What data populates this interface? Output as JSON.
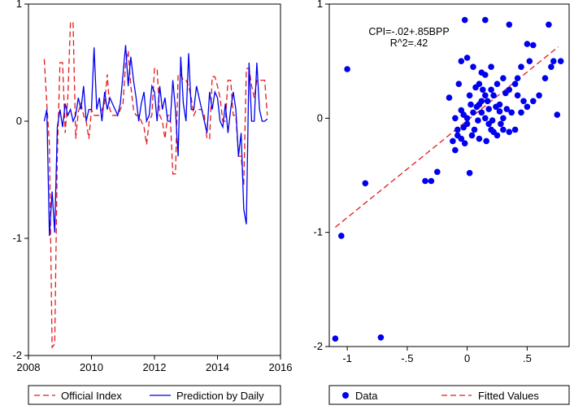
{
  "chart_data": [
    {
      "type": "line",
      "title": "",
      "xlabel": "",
      "ylabel": "",
      "xlim": [
        2008,
        2016
      ],
      "ylim": [
        -2,
        1
      ],
      "xticks": [
        "2008",
        "2010",
        "2012",
        "2014",
        "2016"
      ],
      "yticks": [
        "1",
        "0",
        "-1",
        "-2"
      ],
      "legend": {
        "placement": "bottom",
        "entries": [
          "Official Index",
          "Prediction by Daily"
        ]
      },
      "series": [
        {
          "name": "Official Index",
          "color": "#e41a1c",
          "style": "dashed",
          "x": [
            2008.5,
            2008.583,
            2008.667,
            2008.75,
            2008.833,
            2008.917,
            2009.0,
            2009.083,
            2009.167,
            2009.25,
            2009.333,
            2009.417,
            2009.5,
            2009.583,
            2009.667,
            2009.75,
            2009.833,
            2009.917,
            2010.0,
            2010.083,
            2010.167,
            2010.25,
            2010.333,
            2010.417,
            2010.5,
            2010.583,
            2010.667,
            2010.75,
            2010.833,
            2010.917,
            2011.0,
            2011.083,
            2011.167,
            2011.25,
            2011.333,
            2011.417,
            2011.5,
            2011.583,
            2011.667,
            2011.75,
            2011.833,
            2011.917,
            2012.0,
            2012.083,
            2012.167,
            2012.25,
            2012.333,
            2012.417,
            2012.5,
            2012.583,
            2012.667,
            2012.75,
            2012.833,
            2012.917,
            2013.0,
            2013.083,
            2013.167,
            2013.25,
            2013.333,
            2013.417,
            2013.5,
            2013.583,
            2013.667,
            2013.75,
            2013.833,
            2013.917,
            2014.0,
            2014.083,
            2014.167,
            2014.25,
            2014.333,
            2014.417,
            2014.5,
            2014.583,
            2014.667,
            2014.75,
            2014.833,
            2014.917,
            2015.0,
            2015.083,
            2015.167,
            2015.25,
            2015.333,
            2015.417,
            2015.5,
            2015.583
          ],
          "values": [
            0.53,
            0.15,
            -0.2,
            -1.93,
            -1.9,
            -0.3,
            0.5,
            0.5,
            -0.1,
            0.2,
            0.85,
            0.84,
            -0.15,
            0.08,
            0.15,
            0.05,
            0.0,
            -0.15,
            0.1,
            0.05,
            0.05,
            0.05,
            0.1,
            0.15,
            0.4,
            0.1,
            0.05,
            0.05,
            0.05,
            0.1,
            0.15,
            0.5,
            0.6,
            0.3,
            0.1,
            0.05,
            0.05,
            0.0,
            -0.05,
            -0.2,
            0.0,
            0.05,
            0.45,
            0.45,
            0.05,
            0.0,
            -0.15,
            0.05,
            0.05,
            -0.45,
            -0.45,
            0.4,
            0.4,
            0.35,
            0.35,
            0.3,
            0.2,
            0.05,
            0.1,
            0.1,
            0.1,
            0.05,
            -0.15,
            -0.15,
            0.38,
            0.38,
            0.3,
            0.2,
            0.0,
            0.0,
            0.35,
            0.35,
            0.05,
            0.05,
            -0.3,
            -0.3,
            -0.55,
            0.45,
            0.45,
            0.3,
            0.2,
            0.35,
            0.35,
            0.35,
            0.35,
            0.05
          ]
        },
        {
          "name": "Prediction by Daily",
          "color": "#0000ee",
          "style": "solid",
          "x": [
            2008.5,
            2008.583,
            2008.667,
            2008.75,
            2008.833,
            2008.917,
            2009.0,
            2009.083,
            2009.167,
            2009.25,
            2009.333,
            2009.417,
            2009.5,
            2009.583,
            2009.667,
            2009.75,
            2009.833,
            2009.917,
            2010.0,
            2010.083,
            2010.167,
            2010.25,
            2010.333,
            2010.417,
            2010.5,
            2010.583,
            2010.667,
            2010.75,
            2010.833,
            2010.917,
            2011.0,
            2011.083,
            2011.167,
            2011.25,
            2011.333,
            2011.417,
            2011.5,
            2011.583,
            2011.667,
            2011.75,
            2011.833,
            2011.917,
            2012.0,
            2012.083,
            2012.167,
            2012.25,
            2012.333,
            2012.417,
            2012.5,
            2012.583,
            2012.667,
            2012.75,
            2012.833,
            2012.917,
            2013.0,
            2013.083,
            2013.167,
            2013.25,
            2013.333,
            2013.417,
            2013.5,
            2013.583,
            2013.667,
            2013.75,
            2013.833,
            2013.917,
            2014.0,
            2014.083,
            2014.167,
            2014.25,
            2014.333,
            2014.417,
            2014.5,
            2014.583,
            2014.667,
            2014.75,
            2014.833,
            2014.917,
            2015.0,
            2015.083,
            2015.167,
            2015.25,
            2015.333,
            2015.417,
            2015.5,
            2015.583
          ],
          "values": [
            0.0,
            0.1,
            -0.98,
            -0.6,
            -0.95,
            -0.05,
            0.1,
            -0.05,
            0.15,
            0.05,
            0.1,
            0.0,
            0.05,
            0.2,
            0.1,
            0.3,
            0.0,
            0.1,
            0.1,
            0.63,
            0.1,
            0.2,
            0.0,
            0.25,
            0.1,
            0.2,
            0.15,
            0.1,
            0.05,
            0.15,
            0.4,
            0.65,
            0.3,
            0.55,
            0.35,
            0.2,
            0.0,
            0.15,
            0.25,
            0.0,
            0.05,
            0.3,
            0.25,
            0.0,
            0.3,
            0.1,
            0.2,
            0.0,
            0.0,
            0.35,
            0.1,
            -0.3,
            0.55,
            0.15,
            0.0,
            0.58,
            0.1,
            0.1,
            0.3,
            0.2,
            0.1,
            0.0,
            -0.1,
            0.25,
            0.1,
            0.25,
            0.2,
            0.0,
            -0.05,
            0.15,
            -0.1,
            0.1,
            0.25,
            0.1,
            -0.3,
            -0.1,
            -0.75,
            -0.88,
            0.5,
            0.0,
            0.0,
            0.5,
            0.1,
            0.0,
            0.0,
            0.02
          ]
        }
      ]
    },
    {
      "type": "scatter",
      "title": "",
      "xlabel": "",
      "ylabel": "",
      "xlim": [
        -1.15,
        0.85
      ],
      "ylim": [
        -2,
        1
      ],
      "xticks": [
        "-1",
        "-.5",
        "0",
        ".5"
      ],
      "yticks": [
        "1",
        "0",
        "-1",
        "-2"
      ],
      "annotations": [
        "CPI=-.02+.85BPP",
        "R^2=.42"
      ],
      "legend": {
        "placement": "bottom",
        "entries": [
          "Data",
          "Fitted Values"
        ]
      },
      "fit_line": {
        "name": "Fitted Values",
        "color": "#e41a1c",
        "style": "dashed",
        "intercept": -0.02,
        "slope": 0.85,
        "x_range": [
          -1.1,
          0.76
        ]
      },
      "series": [
        {
          "name": "Data",
          "color": "#0000ee",
          "points": [
            [
              -1.1,
              -1.93
            ],
            [
              -0.72,
              -1.92
            ],
            [
              -1.05,
              -1.03
            ],
            [
              -0.85,
              -0.57
            ],
            [
              -1.0,
              0.43
            ],
            [
              -0.35,
              -0.55
            ],
            [
              -0.3,
              -0.55
            ],
            [
              -0.25,
              -0.47
            ],
            [
              -0.1,
              -0.28
            ],
            [
              -0.08,
              -0.15
            ],
            [
              -0.05,
              -0.18
            ],
            [
              -0.03,
              -0.08
            ],
            [
              0.02,
              -0.48
            ],
            [
              0.0,
              0.0
            ],
            [
              0.05,
              0.05
            ],
            [
              0.08,
              0.1
            ],
            [
              0.1,
              0.12
            ],
            [
              0.12,
              0.15
            ],
            [
              0.15,
              0.2
            ],
            [
              0.2,
              0.25
            ],
            [
              0.18,
              -0.05
            ],
            [
              0.22,
              -0.12
            ],
            [
              0.25,
              -0.15
            ],
            [
              0.3,
              -0.1
            ],
            [
              0.35,
              -0.12
            ],
            [
              0.4,
              -0.1
            ],
            [
              0.45,
              0.05
            ],
            [
              0.5,
              0.1
            ],
            [
              0.55,
              0.15
            ],
            [
              0.6,
              0.2
            ],
            [
              0.65,
              0.35
            ],
            [
              0.7,
              0.45
            ],
            [
              0.72,
              0.5
            ],
            [
              0.75,
              0.03
            ],
            [
              0.78,
              0.5
            ],
            [
              -0.05,
              0.5
            ],
            [
              0.0,
              0.53
            ],
            [
              0.05,
              0.45
            ],
            [
              0.1,
              0.3
            ],
            [
              0.15,
              0.38
            ],
            [
              0.2,
              0.45
            ],
            [
              0.25,
              0.3
            ],
            [
              0.3,
              0.35
            ],
            [
              0.35,
              0.25
            ],
            [
              0.4,
              0.3
            ],
            [
              0.45,
              0.45
            ],
            [
              0.5,
              0.65
            ],
            [
              0.55,
              0.64
            ],
            [
              0.35,
              0.82
            ],
            [
              0.68,
              0.82
            ],
            [
              -0.02,
              0.86
            ],
            [
              0.15,
              0.86
            ],
            [
              -0.15,
              0.18
            ],
            [
              -0.1,
              0.0
            ],
            [
              -0.05,
              0.07
            ],
            [
              0.0,
              -0.05
            ],
            [
              0.03,
              0.12
            ],
            [
              0.06,
              -0.1
            ],
            [
              0.09,
              -0.02
            ],
            [
              0.12,
              0.05
            ],
            [
              0.15,
              0.0
            ],
            [
              0.18,
              0.08
            ],
            [
              0.21,
              -0.02
            ],
            [
              0.24,
              0.1
            ],
            [
              0.27,
              0.06
            ],
            [
              0.3,
              0.0
            ],
            [
              -0.08,
              -0.1
            ],
            [
              -0.03,
              0.03
            ],
            [
              0.02,
              0.2
            ],
            [
              0.07,
              0.27
            ],
            [
              0.12,
              0.4
            ],
            [
              0.17,
              0.15
            ],
            [
              0.22,
              0.2
            ],
            [
              0.27,
              0.12
            ],
            [
              0.32,
              0.22
            ],
            [
              0.37,
              0.05
            ],
            [
              0.42,
              0.2
            ],
            [
              0.47,
              0.15
            ],
            [
              -0.12,
              -0.2
            ],
            [
              -0.02,
              -0.22
            ],
            [
              0.04,
              -0.15
            ],
            [
              0.1,
              -0.18
            ],
            [
              0.16,
              -0.2
            ],
            [
              0.2,
              -0.1
            ],
            [
              0.28,
              -0.05
            ],
            [
              0.33,
              0.08
            ],
            [
              0.42,
              0.35
            ],
            [
              0.52,
              0.5
            ],
            [
              -0.07,
              0.3
            ],
            [
              0.13,
              0.25
            ]
          ]
        }
      ]
    }
  ]
}
